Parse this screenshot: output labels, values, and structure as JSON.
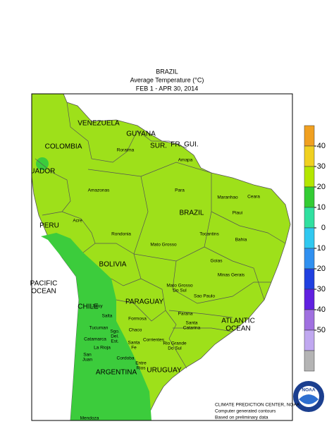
{
  "header": {
    "lines": [
      "BRAZIL",
      "Average Temperature (°C)",
      "FEB  1 - APR 30, 2014"
    ]
  },
  "colorbar": {
    "ticks": [
      40,
      30,
      20,
      10,
      0,
      -10,
      -20,
      -30,
      -40,
      -50
    ],
    "colors": [
      "#f0a020",
      "#f0d020",
      "#b4e600",
      "#33cc33",
      "#30e0a0",
      "#30c8f0",
      "#3090f0",
      "#2040e0",
      "#6020e0",
      "#a070e0",
      "#c0a8f0",
      "#b4b4b4"
    ]
  },
  "map": {
    "land_color": "#9ee01a",
    "warm_color": "#3ccc3c",
    "countries": [
      [
        "VENEZUELA"
      ],
      [
        "GUYANA"
      ],
      [
        "SUR."
      ],
      [
        "FR. GUI."
      ],
      [
        "COLOMBIA"
      ],
      [
        "CUADOR"
      ],
      [
        "PERU"
      ],
      [
        "BOLIVIA"
      ],
      [
        "BRAZIL"
      ],
      [
        "PARAGUAY"
      ],
      [
        "CHILE"
      ],
      [
        "ARGENTINA"
      ],
      [
        "URUGUAY"
      ],
      [
        "PACIFIC",
        "OCEAN"
      ],
      [
        "ATLANTIC",
        "OCEAN"
      ]
    ],
    "regions": [
      [
        "Roraima"
      ],
      [
        "Amapa"
      ],
      [
        "Amazonas"
      ],
      [
        "Para"
      ],
      [
        "Maranhao"
      ],
      [
        "Ceara"
      ],
      [
        "Piaui"
      ],
      [
        "Acre"
      ],
      [
        "Rondonia"
      ],
      [
        "Tocantins"
      ],
      [
        "Bahia"
      ],
      [
        "Mato Grosso"
      ],
      [
        "Goias"
      ],
      [
        "Minas Gerais"
      ],
      [
        "Mato Grosso",
        "Do Sul"
      ],
      [
        "Sao Paulo"
      ],
      [
        "Parana"
      ],
      [
        "Santa",
        "Catarina"
      ],
      [
        "Rio Grande",
        "Do Sul"
      ],
      [
        "Jujuy"
      ],
      [
        "Salta"
      ],
      [
        "Formosa"
      ],
      [
        "Chaco"
      ],
      [
        "Sgo.",
        "Del.",
        "Est."
      ],
      [
        "Tucuman"
      ],
      [
        "Catamarca"
      ],
      [
        "La Rioja"
      ],
      [
        "San",
        "Juan"
      ],
      [
        "Santa",
        "Fe"
      ],
      [
        "Corrientes"
      ],
      [
        "Cordoba"
      ],
      [
        "Entre",
        "Rios"
      ],
      [
        "Mendoza"
      ]
    ]
  },
  "footer": {
    "lines": [
      "CLIMATE PREDICTION CENTER, NOAA",
      "Computer generated contours",
      "Based on preliminary data"
    ],
    "logo": "NOAA"
  }
}
